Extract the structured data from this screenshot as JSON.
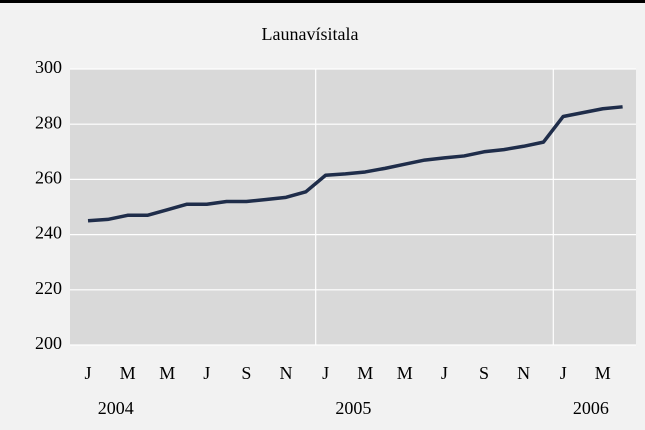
{
  "chart_data": {
    "type": "line",
    "title": "Launavísitala",
    "categories": [
      "J",
      null,
      "M",
      null,
      "M",
      null,
      "J",
      null,
      "S",
      null,
      "N",
      null,
      "J",
      null,
      "M",
      null,
      "M",
      null,
      "J",
      null,
      "S",
      null,
      "N",
      null,
      "J",
      null,
      "M",
      null
    ],
    "years": [
      "2004",
      "2005",
      "2006"
    ],
    "series": [
      {
        "name": "Launavísitala",
        "color": "#1f2d4a",
        "values": [
          245,
          245.5,
          247,
          247,
          249,
          251,
          251,
          252,
          252,
          252.7,
          253.5,
          255.5,
          261.5,
          262,
          262.7,
          264,
          265.5,
          267,
          267.8,
          268.5,
          270,
          270.8,
          272,
          273.5,
          282.8,
          284.2,
          285.6,
          286.3
        ]
      }
    ],
    "ylim": [
      200,
      300
    ],
    "yticks": [
      200,
      220,
      240,
      260,
      280,
      300
    ],
    "grid": true
  }
}
